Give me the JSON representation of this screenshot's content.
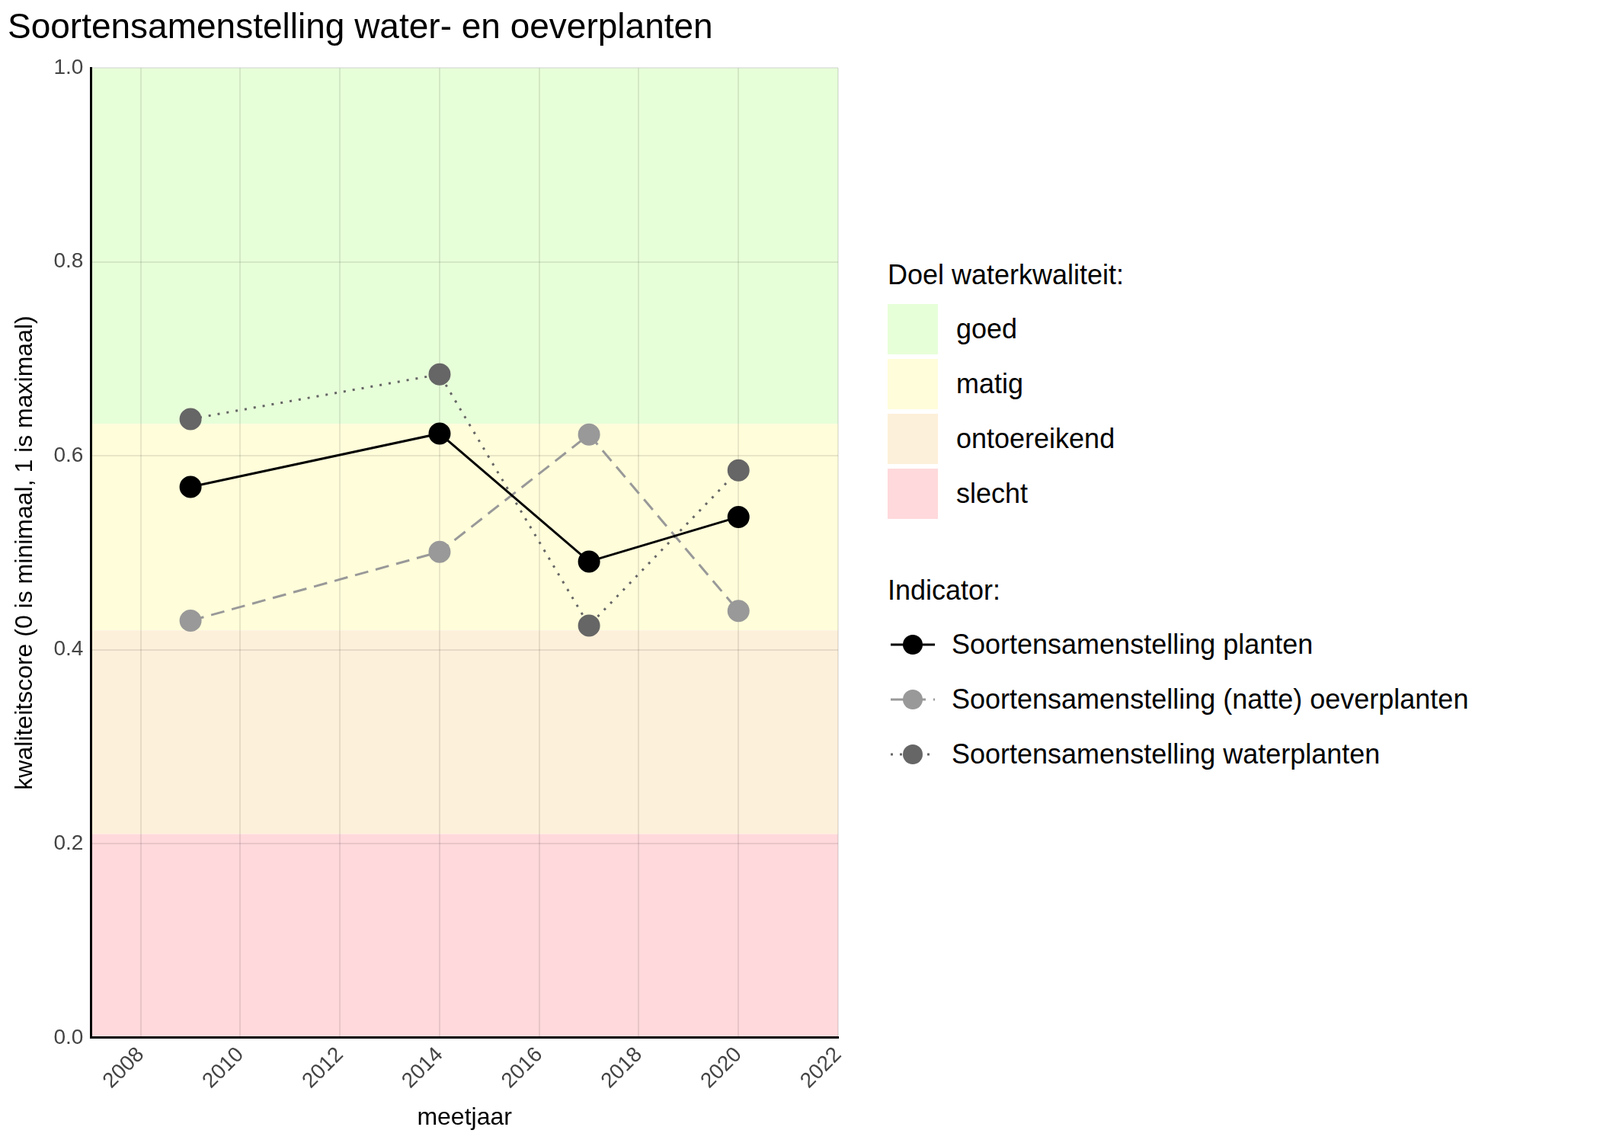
{
  "chart_data": {
    "type": "line",
    "title": "Soortensamenstelling water- en oeverplanten",
    "x_label": "meetjaar",
    "y_label": "kwaliteitscore (0 is minimaal, 1 is maximaal)",
    "x": [
      2009,
      2014,
      2017,
      2020
    ],
    "series": [
      {
        "name": "Soortensamenstelling planten",
        "color": "#000000",
        "marker": "circle",
        "line_style": "solid",
        "values": [
          0.568,
          0.623,
          0.491,
          0.537
        ]
      },
      {
        "name": "Soortensamenstelling (natte) oeverplanten",
        "color": "#999999",
        "marker": "circle",
        "line_style": "dashed",
        "values": [
          0.43,
          0.501,
          0.622,
          0.44
        ]
      },
      {
        "name": "Soortensamenstelling waterplanten",
        "color": "#666666",
        "marker": "circle",
        "line_style": "dotted",
        "values": [
          0.638,
          0.684,
          0.425,
          0.585
        ]
      }
    ],
    "xlim": [
      2007,
      2022
    ],
    "xticks": [
      2008,
      2010,
      2012,
      2014,
      2016,
      2018,
      2020,
      2022
    ],
    "ylim": [
      0,
      1
    ],
    "yticks": [
      {
        "value": 0,
        "label": "0.0"
      },
      {
        "value": 0.2,
        "label": "0.2"
      },
      {
        "value": 0.4,
        "label": "0.4"
      },
      {
        "value": 0.6,
        "label": "0.6"
      },
      {
        "value": 0.8,
        "label": "0.8"
      },
      {
        "value": 1,
        "label": "1.0"
      }
    ],
    "grid": true,
    "legend": "right",
    "legend_title": "Indicator:",
    "bands_title": "Doel waterkwaliteit:",
    "bands": [
      {
        "name": "goed",
        "from": 0.633,
        "to": 1,
        "color": "#e7ffd9"
      },
      {
        "name": "matig",
        "from": 0.42,
        "to": 0.633,
        "color": "#fffdda"
      },
      {
        "name": "ontoereikend",
        "from": 0.21,
        "to": 0.42,
        "color": "#fdf0da"
      },
      {
        "name": "slecht",
        "from": 0,
        "to": 0.21,
        "color": "#ffd9dc"
      }
    ]
  }
}
